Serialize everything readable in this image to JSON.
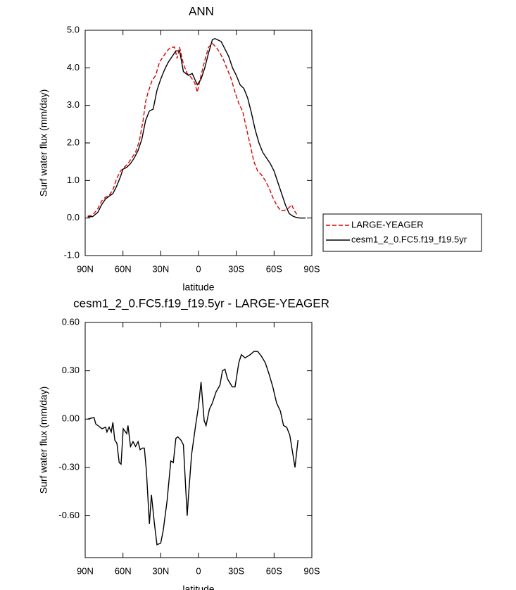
{
  "chart_data": [
    {
      "type": "line",
      "title": "ANN",
      "xlabel": "latitude",
      "ylabel": "Surf water flux (mm/day)",
      "xlim": [
        90,
        -90
      ],
      "xticks": [
        {
          "value": 90,
          "label": "90N"
        },
        {
          "value": 60,
          "label": "60N"
        },
        {
          "value": 30,
          "label": "30N"
        },
        0,
        {
          "value": -30,
          "label": "30S"
        },
        {
          "value": -60,
          "label": "60S"
        },
        {
          "value": -90,
          "label": "90S"
        }
      ],
      "ylim": [
        -1,
        5
      ],
      "yticks": [
        {
          "value": -1,
          "label": "-1.0"
        },
        {
          "value": 0,
          "label": "0.0"
        },
        {
          "value": 1,
          "label": "1.0"
        },
        {
          "value": 2,
          "label": "2.0"
        },
        {
          "value": 3,
          "label": "3.0"
        },
        {
          "value": 4,
          "label": "4.0"
        },
        {
          "value": 5,
          "label": "5.0"
        }
      ],
      "grid": false,
      "legend": "outside right",
      "series": [
        {
          "name": "LARGE-YEAGER",
          "color": "#dd0000",
          "line_style": "dashed",
          "x": [
            88,
            84,
            80,
            77,
            74,
            71,
            68,
            65,
            62,
            59,
            56,
            53,
            50,
            47,
            44,
            42,
            40,
            37,
            34,
            31,
            28,
            25,
            22,
            19,
            17,
            15,
            12,
            9,
            6,
            3,
            1,
            -2,
            -5,
            -8,
            -11,
            -14,
            -17,
            -20,
            -23,
            -26,
            -29,
            -32,
            -35,
            -38,
            -41,
            -44,
            -47,
            -50,
            -53,
            -56,
            -59,
            -62,
            -65,
            -68,
            -71,
            -74,
            -76,
            -78
          ],
          "values": [
            0.05,
            0.08,
            0.25,
            0.45,
            0.55,
            0.6,
            0.75,
            1.05,
            1.25,
            1.35,
            1.45,
            1.6,
            1.75,
            2.05,
            2.6,
            3.1,
            3.35,
            3.65,
            3.8,
            4.15,
            4.3,
            4.45,
            4.55,
            4.55,
            4.25,
            4.55,
            4.1,
            3.85,
            3.75,
            3.6,
            3.35,
            3.8,
            4.2,
            4.55,
            4.65,
            4.55,
            4.4,
            4.2,
            3.95,
            3.7,
            3.35,
            3.05,
            2.85,
            2.4,
            1.95,
            1.5,
            1.25,
            1.15,
            1.0,
            0.8,
            0.55,
            0.35,
            0.2,
            0.2,
            0.25,
            0.35,
            0.2,
            0.1
          ]
        },
        {
          "name": "cesm1_2_0.FC5.f19_f19.5yr",
          "color": "#000000",
          "line_style": "solid",
          "x": [
            88,
            84,
            80,
            77,
            74,
            71,
            68,
            65,
            62,
            60,
            57,
            54,
            51,
            48,
            45,
            42,
            39,
            36,
            33,
            30,
            27,
            24,
            21,
            18,
            15,
            12,
            8,
            5,
            1,
            -2,
            -5,
            -8,
            -11,
            -13,
            -15,
            -18,
            -21,
            -24,
            -27,
            -30,
            -33,
            -36,
            -39,
            -42,
            -45,
            -48,
            -51,
            -54,
            -57,
            -60,
            -63,
            -66,
            -69,
            -72,
            -75,
            -78,
            -81,
            -85
          ],
          "values": [
            0.03,
            0.04,
            0.15,
            0.35,
            0.5,
            0.58,
            0.65,
            0.85,
            1.1,
            1.3,
            1.35,
            1.45,
            1.6,
            1.8,
            2.1,
            2.6,
            2.85,
            2.9,
            3.4,
            3.7,
            3.95,
            4.15,
            4.3,
            4.45,
            4.45,
            3.9,
            3.8,
            3.85,
            3.55,
            3.7,
            4.0,
            4.4,
            4.75,
            4.78,
            4.75,
            4.7,
            4.5,
            4.3,
            4.0,
            3.8,
            3.55,
            3.45,
            3.2,
            2.8,
            2.35,
            2.0,
            1.75,
            1.6,
            1.45,
            1.25,
            0.95,
            0.65,
            0.35,
            0.12,
            0.05,
            0.01,
            0.0,
            0.0
          ]
        }
      ]
    },
    {
      "type": "line",
      "title": "cesm1_2_0.FC5.f19_f19.5yr - LARGE-YEAGER",
      "xlabel": "latitude",
      "ylabel": "Surf water flux (mm/day)",
      "xlim": [
        90,
        -90
      ],
      "xticks": [
        {
          "value": 90,
          "label": "90N"
        },
        {
          "value": 60,
          "label": "60N"
        },
        {
          "value": 30,
          "label": "30N"
        },
        0,
        {
          "value": -30,
          "label": "30S"
        },
        {
          "value": -60,
          "label": "60S"
        },
        {
          "value": -90,
          "label": "90S"
        }
      ],
      "ylim": [
        -0.86,
        0.6
      ],
      "yticks": [
        {
          "value": -0.6,
          "label": "-0.60"
        },
        {
          "value": -0.3,
          "label": "-0.30"
        },
        {
          "value": 0,
          "label": "0.00"
        },
        {
          "value": 0.3,
          "label": "0.30"
        },
        {
          "value": 0.6,
          "label": "0.60"
        }
      ],
      "grid": false,
      "series": [
        {
          "color": "#000000",
          "line_style": "solid",
          "x": [
            88,
            83,
            81.6,
            76.6,
            73.8,
            72.7,
            71,
            69.3,
            68,
            66.5,
            64.8,
            63,
            61.5,
            59.8,
            57,
            56,
            54,
            52,
            50,
            48,
            46.4,
            44.6,
            43,
            41.4,
            39,
            37.4,
            35,
            33,
            30,
            28,
            25,
            22,
            20,
            18,
            16.5,
            14,
            12,
            9,
            8,
            5.5,
            2.5,
            0,
            -2,
            -4.5,
            -6,
            -8.6,
            -11,
            -14,
            -17,
            -19,
            -21,
            -23,
            -26.8,
            -29,
            -32,
            -34,
            -37,
            -39,
            -41,
            -44,
            -47,
            -50,
            -53,
            -56,
            -59,
            -62,
            -65,
            -67.5,
            -70,
            -72.5,
            -76.6,
            -79
          ],
          "values": [
            0.0,
            0.01,
            -0.03,
            -0.06,
            -0.05,
            -0.08,
            -0.05,
            -0.08,
            -0.02,
            -0.13,
            -0.15,
            -0.27,
            -0.28,
            -0.06,
            -0.09,
            -0.04,
            -0.17,
            -0.14,
            -0.17,
            -0.14,
            -0.19,
            -0.18,
            -0.18,
            -0.32,
            -0.65,
            -0.47,
            -0.65,
            -0.78,
            -0.77,
            -0.69,
            -0.51,
            -0.26,
            -0.27,
            -0.12,
            -0.11,
            -0.13,
            -0.16,
            -0.6,
            -0.48,
            -0.22,
            -0.05,
            0.08,
            0.23,
            -0.01,
            -0.04,
            0.06,
            0.1,
            0.17,
            0.21,
            0.3,
            0.31,
            0.25,
            0.2,
            0.2,
            0.35,
            0.4,
            0.38,
            0.39,
            0.4,
            0.42,
            0.42,
            0.39,
            0.35,
            0.28,
            0.2,
            0.1,
            0.05,
            -0.04,
            -0.05,
            -0.1,
            -0.3,
            -0.13
          ]
        }
      ]
    }
  ]
}
